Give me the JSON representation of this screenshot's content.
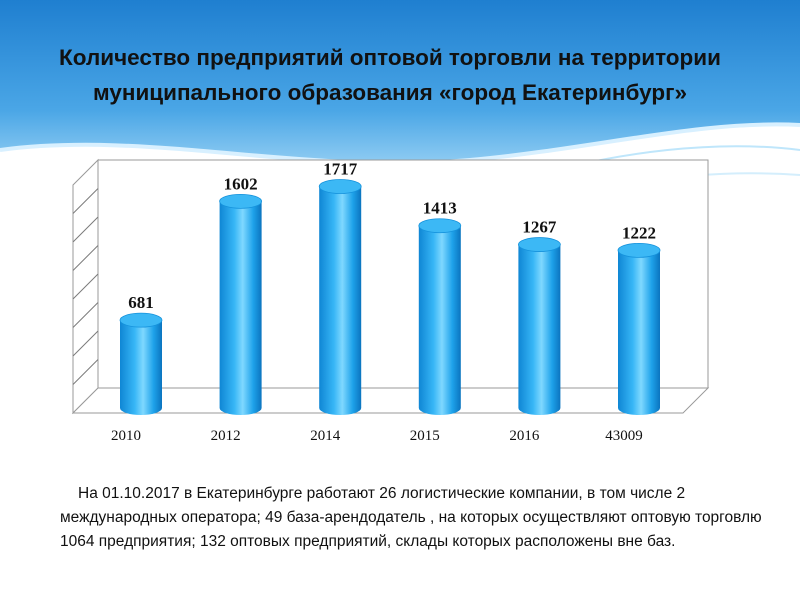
{
  "slide": {
    "title_line1": "Количество предприятий оптовой торговли на территории",
    "title_line2": "муниципального образования «город Екатеринбург»",
    "caption": "На 01.10.2017 в Екатеринбурге работают 26 логистические компании, в том числе 2 международных оператора; 49 база-арендодатель , на которых осуществляют оптовую торговлю 1064 предприятия; 132 оптовых предприятий, склады которых расположены вне баз."
  },
  "colors": {
    "bar": "#1a9ee6",
    "bar_highlight": "#6fd2ff",
    "bar_top": "#3cb8f5",
    "header_sky": "#2e86d4",
    "header_light": "#bfe6fb"
  },
  "chart_data": {
    "type": "bar",
    "style": "3d-cylinder",
    "categories": [
      "2010",
      "2012",
      "2014",
      "2015",
      "2016",
      "43009"
    ],
    "values": [
      681,
      1602,
      1717,
      1413,
      1267,
      1222
    ],
    "data_labels": [
      "681",
      "1602",
      "1717",
      "1413",
      "1267",
      "1222"
    ],
    "title": "",
    "xlabel": "",
    "ylabel": "",
    "ylim": [
      0,
      2000
    ],
    "grid": true,
    "legend": "none"
  }
}
